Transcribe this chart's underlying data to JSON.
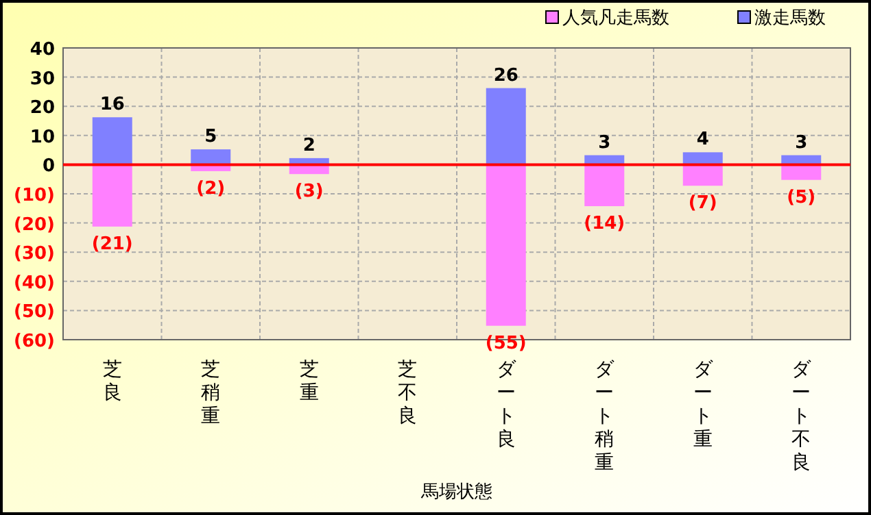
{
  "chart_data": {
    "type": "bar",
    "stacked": true,
    "xlabel": "馬場状態",
    "categories": [
      "芝良",
      "芝稍重",
      "芝重",
      "芝不良",
      "ダート良",
      "ダート稍重",
      "ダート重",
      "ダート不良"
    ],
    "series": [
      {
        "name": "人気凡走馬数",
        "color": "#ff80ff",
        "values": [
          -21,
          -2,
          -3,
          null,
          -55,
          -14,
          -7,
          -5
        ],
        "value_labels": [
          "(21)",
          "(2)",
          "(3)",
          null,
          "(55)",
          "(14)",
          "(7)",
          "(5)"
        ]
      },
      {
        "name": "激走馬数",
        "color": "#8080ff",
        "values": [
          16,
          5,
          2,
          null,
          26,
          3,
          4,
          3
        ],
        "value_labels": [
          "16",
          "5",
          "2",
          null,
          "26",
          "3",
          "4",
          "3"
        ]
      }
    ],
    "ylim": [
      -60,
      40
    ],
    "yticks": [
      {
        "value": -60,
        "label": "(60)"
      },
      {
        "value": -50,
        "label": "(50)"
      },
      {
        "value": -40,
        "label": "(40)"
      },
      {
        "value": -30,
        "label": "(30)"
      },
      {
        "value": -20,
        "label": "(20)"
      },
      {
        "value": -10,
        "label": "(10)"
      },
      0,
      10,
      20,
      30,
      40
    ],
    "ref_lines": [
      {
        "axis": "y",
        "value": 0,
        "color": "#ff0000"
      }
    ],
    "grid": true,
    "legend": "top right"
  }
}
